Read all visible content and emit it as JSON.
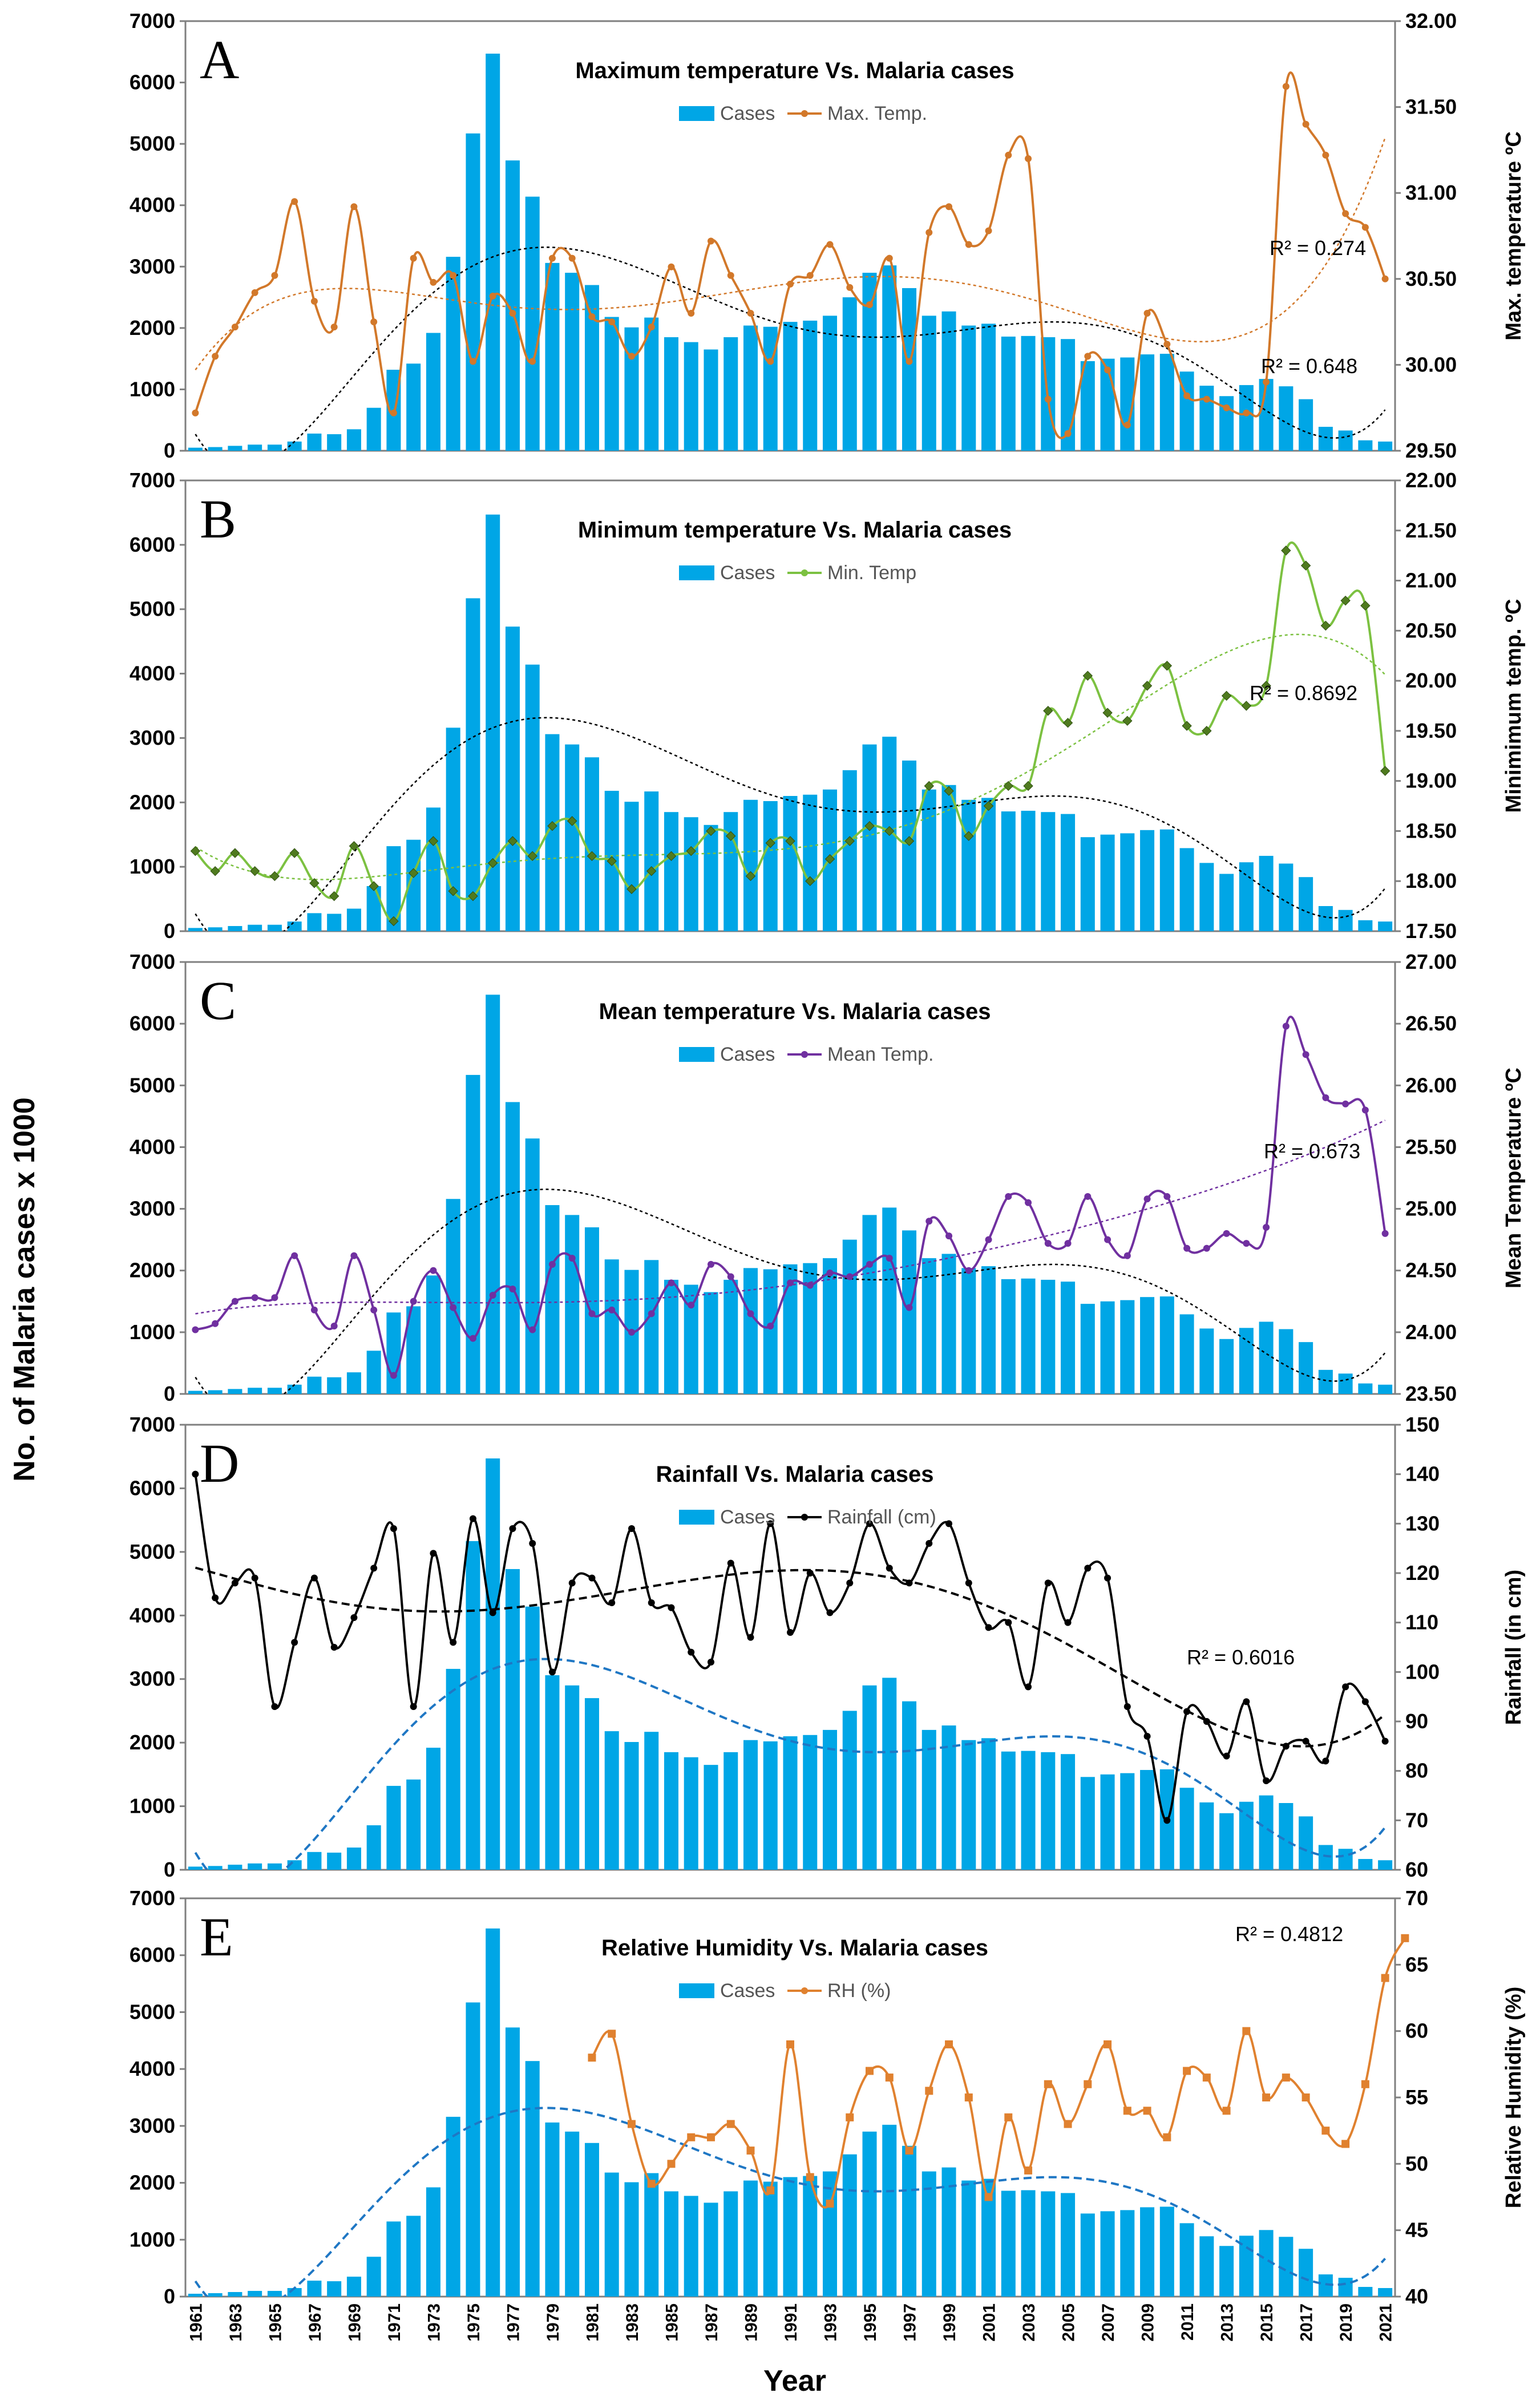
{
  "figure": {
    "left_axis_label": "No. of Malaria cases x 1000",
    "x_axis_label": "Year"
  },
  "chart_data": [
    {
      "type": "bar+line",
      "letter": "A",
      "title": "Maximum temperature  Vs. Malaria cases",
      "legend": [
        "Cases",
        "Max. Temp."
      ],
      "right_axis_label": "Max. temperature ºC",
      "left_ylim": [
        0,
        7000
      ],
      "right_ylim": [
        29.5,
        32.0
      ],
      "right_ticks": [
        "29.50",
        "30.00",
        "30.50",
        "31.00",
        "31.50",
        "32.00"
      ],
      "line_color": "#d2782a",
      "marker": "circle",
      "line_values": [
        29.72,
        30.05,
        30.22,
        30.42,
        30.52,
        30.95,
        30.37,
        30.22,
        30.92,
        30.25,
        29.72,
        30.62,
        30.48,
        30.52,
        30.02,
        30.4,
        30.3,
        30.02,
        30.62,
        30.62,
        30.28,
        30.25,
        30.05,
        30.22,
        30.57,
        30.3,
        30.72,
        30.52,
        30.3,
        30.02,
        30.47,
        30.52,
        30.7,
        30.45,
        30.35,
        30.62,
        30.02,
        30.77,
        30.92,
        30.7,
        30.78,
        31.22,
        31.2,
        29.8,
        29.6,
        30.05,
        29.97,
        29.65,
        30.3,
        30.12,
        29.82,
        29.8,
        29.75,
        29.72,
        29.9,
        31.62,
        31.4,
        31.22,
        30.88,
        30.8,
        30.5
      ],
      "annotations": [
        {
          "text": "R² = 0.274",
          "series": "line"
        },
        {
          "text": "R² = 0.648",
          "series": "cases"
        }
      ]
    },
    {
      "type": "bar+line",
      "letter": "B",
      "title": "Minimum temperature  Vs. Malaria cases",
      "legend": [
        "Cases",
        "Min. Temp"
      ],
      "right_axis_label": "Minimimum temp. ºC",
      "left_ylim": [
        0,
        7000
      ],
      "right_ylim": [
        17.5,
        22.0
      ],
      "right_ticks": [
        "17.50",
        "18.00",
        "18.50",
        "19.00",
        "19.50",
        "20.00",
        "20.50",
        "21.00",
        "21.50",
        "22.00"
      ],
      "line_color": "#7cc141",
      "marker": "diamond",
      "line_values": [
        18.3,
        18.1,
        18.28,
        18.1,
        18.05,
        18.28,
        17.98,
        17.85,
        18.35,
        17.95,
        17.6,
        18.08,
        18.4,
        17.9,
        17.85,
        18.18,
        18.4,
        18.25,
        18.55,
        18.6,
        18.25,
        18.2,
        17.92,
        18.1,
        18.25,
        18.3,
        18.5,
        18.45,
        18.05,
        18.38,
        18.4,
        18.0,
        18.22,
        18.4,
        18.55,
        18.5,
        18.4,
        18.95,
        18.9,
        18.45,
        18.75,
        18.95,
        18.95,
        19.7,
        19.58,
        20.05,
        19.68,
        19.6,
        19.95,
        20.15,
        19.55,
        19.5,
        19.85,
        19.75,
        19.95,
        21.3,
        21.15,
        20.55,
        20.8,
        20.75,
        19.1
      ],
      "annotations": [
        {
          "text": "R² = 0.8692",
          "series": "line"
        }
      ]
    },
    {
      "type": "bar+line",
      "letter": "C",
      "title": "Mean temperature  Vs. Malaria cases",
      "legend": [
        "Cases",
        "Mean Temp."
      ],
      "right_axis_label": "Mean Temperature ºC",
      "left_ylim": [
        0,
        7000
      ],
      "right_ylim": [
        23.5,
        27.0
      ],
      "right_ticks": [
        "23.50",
        "24.00",
        "24.50",
        "25.00",
        "25.50",
        "26.00",
        "26.50",
        "27.00"
      ],
      "line_color": "#7030a0",
      "marker": "circle",
      "line_values": [
        24.02,
        24.07,
        24.25,
        24.28,
        24.28,
        24.62,
        24.18,
        24.05,
        24.62,
        24.18,
        23.65,
        24.25,
        24.5,
        24.2,
        23.95,
        24.3,
        24.35,
        24.02,
        24.55,
        24.6,
        24.15,
        24.18,
        24.0,
        24.15,
        24.4,
        24.22,
        24.55,
        24.45,
        24.15,
        24.05,
        24.4,
        24.38,
        24.48,
        24.45,
        24.55,
        24.6,
        24.2,
        24.9,
        24.78,
        24.5,
        24.75,
        25.1,
        25.05,
        24.72,
        24.72,
        25.1,
        24.75,
        24.62,
        25.08,
        25.1,
        24.68,
        24.68,
        24.8,
        24.72,
        24.85,
        26.48,
        26.25,
        25.9,
        25.85,
        25.8,
        24.8
      ],
      "annotations": [
        {
          "text": "R² = 0.673",
          "series": "line"
        }
      ]
    },
    {
      "type": "bar+line",
      "letter": "D",
      "title": "Rainfall  Vs. Malaria cases",
      "legend": [
        "Cases",
        "Rainfall (cm)"
      ],
      "right_axis_label": "Rainfall (in cm)",
      "left_ylim": [
        0,
        7000
      ],
      "right_ylim": [
        60,
        150
      ],
      "right_ticks": [
        "60",
        "70",
        "80",
        "90",
        "100",
        "110",
        "120",
        "130",
        "140",
        "150"
      ],
      "line_color": "#000000",
      "marker": "circle",
      "line_values": [
        140,
        115,
        118,
        119,
        93,
        106,
        119,
        105,
        111,
        121,
        129,
        93,
        124,
        106,
        131,
        112,
        129,
        126,
        100,
        118,
        119,
        114,
        129,
        114,
        113,
        104,
        102,
        122,
        107,
        130,
        108,
        120,
        112,
        118,
        130,
        121,
        118,
        126,
        130,
        118,
        109,
        110,
        97,
        118,
        110,
        121,
        119,
        93,
        87,
        70,
        92,
        90,
        83,
        94,
        78,
        85,
        86,
        82,
        97,
        94,
        86
      ],
      "annotations": [
        {
          "text": "R² = 0.6016",
          "series": "line"
        }
      ]
    },
    {
      "type": "bar+line",
      "letter": "E",
      "title": "Relative Humidity  Vs. Malaria cases",
      "legend": [
        "Cases",
        "RH (%)"
      ],
      "right_axis_label": "Relative Humidity  (%)",
      "left_ylim": [
        0,
        7000
      ],
      "right_ylim": [
        40,
        70
      ],
      "right_ticks": [
        "40",
        "45",
        "50",
        "55",
        "60",
        "65",
        "70"
      ],
      "line_color": "#e0812f",
      "marker": "square",
      "line_start_year": 1981,
      "line_values": [
        58,
        59.8,
        53,
        48.5,
        50,
        52,
        52,
        53,
        51,
        48,
        59,
        49,
        47,
        53.5,
        57,
        56.5,
        51,
        55.5,
        59,
        55,
        47.5,
        53.5,
        49.5,
        56,
        53,
        56,
        59,
        54,
        54,
        52,
        57,
        56.5,
        54,
        60,
        55,
        56.5,
        55,
        52.5,
        51.5,
        56,
        64,
        67
      ],
      "annotations": [
        {
          "text": "R² = 0.4812",
          "series": "line"
        }
      ]
    }
  ],
  "cases_series": {
    "name": "Cases",
    "color": "#00a6e6",
    "years": [
      1961,
      1962,
      1963,
      1964,
      1965,
      1966,
      1967,
      1968,
      1969,
      1970,
      1971,
      1972,
      1973,
      1974,
      1975,
      1976,
      1977,
      1978,
      1979,
      1980,
      1981,
      1982,
      1983,
      1984,
      1985,
      1986,
      1987,
      1988,
      1989,
      1990,
      1991,
      1992,
      1993,
      1994,
      1995,
      1996,
      1997,
      1998,
      1999,
      2000,
      2001,
      2002,
      2003,
      2004,
      2005,
      2006,
      2007,
      2008,
      2009,
      2010,
      2011,
      2012,
      2013,
      2014,
      2015,
      2016,
      2017,
      2018,
      2019,
      2020,
      2021
    ],
    "values": [
      50,
      60,
      80,
      100,
      100,
      150,
      280,
      270,
      350,
      700,
      1320,
      1420,
      1920,
      3160,
      5170,
      6470,
      4730,
      4140,
      3060,
      2900,
      2700,
      2180,
      2010,
      2170,
      1850,
      1770,
      1650,
      1850,
      2040,
      2020,
      2100,
      2120,
      2200,
      2500,
      2900,
      3020,
      2650,
      2200,
      2270,
      2040,
      2070,
      1860,
      1870,
      1850,
      1820,
      1460,
      1500,
      1520,
      1570,
      1580,
      1290,
      1060,
      890,
      1070,
      1170,
      1050,
      840,
      390,
      330,
      170,
      150
    ]
  },
  "x_tick_labels": [
    "1961",
    "1963",
    "1965",
    "1967",
    "1969",
    "1971",
    "1973",
    "1975",
    "1977",
    "1979",
    "1981",
    "1983",
    "1985",
    "1987",
    "1989",
    "1991",
    "1993",
    "1995",
    "1997",
    "1999",
    "2001",
    "2003",
    "2005",
    "2007",
    "2009",
    "2011",
    "2013",
    "2015",
    "2017",
    "2019",
    "2021"
  ],
  "left_ticks": [
    "0",
    "1000",
    "2000",
    "3000",
    "4000",
    "5000",
    "6000",
    "7000"
  ]
}
